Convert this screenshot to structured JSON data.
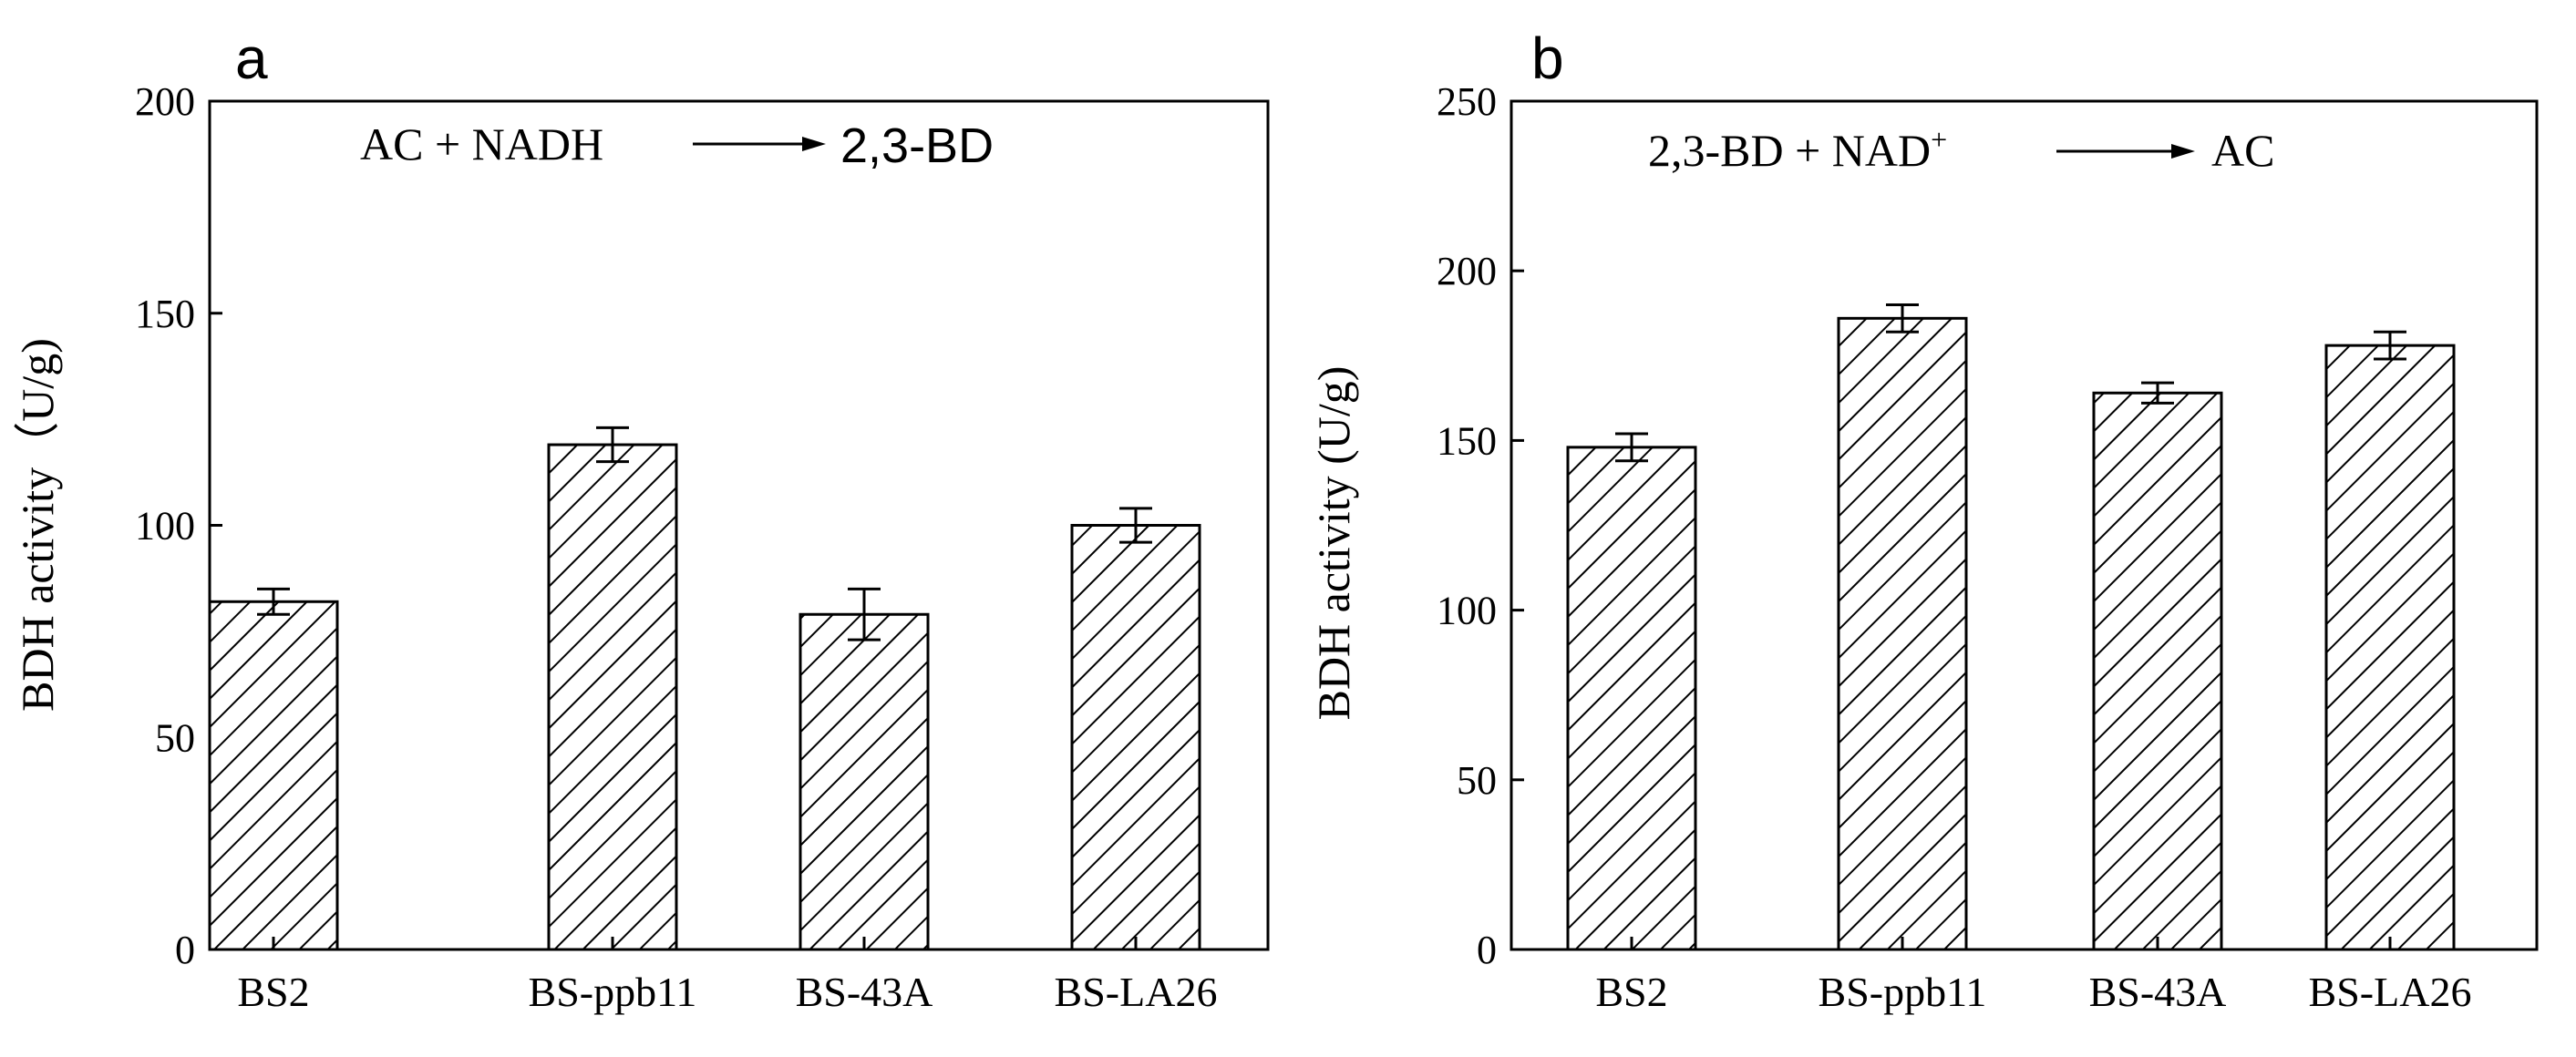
{
  "chart_data": [
    {
      "panel": "a",
      "type": "bar",
      "categories": [
        "BS2",
        "BS-ppb11",
        "BS-43A",
        "BS-LA26"
      ],
      "values": [
        82,
        119,
        79,
        100
      ],
      "errors": [
        3,
        4,
        6,
        4
      ],
      "ylabel": "BDH activity（U/g)",
      "xlabel": "",
      "ylim": [
        0,
        200
      ],
      "yticks": [
        0,
        50,
        100,
        150,
        200
      ],
      "pattern": "diagonal-hatch",
      "reaction": {
        "left": "AC + NADH",
        "superscript": "",
        "right": "2,3-BD"
      }
    },
    {
      "panel": "b",
      "type": "bar",
      "categories": [
        "BS2",
        "BS-ppb11",
        "BS-43A",
        "BS-LA26"
      ],
      "values": [
        148,
        186,
        164,
        178
      ],
      "errors": [
        4,
        4,
        3,
        4
      ],
      "ylabel": "BDH activity (U/g)",
      "xlabel": "",
      "ylim": [
        0,
        250
      ],
      "yticks": [
        0,
        50,
        100,
        150,
        200,
        250
      ],
      "pattern": "diagonal-hatch",
      "reaction": {
        "left": "2,3-BD + NAD",
        "superscript": "+",
        "right": "AC"
      }
    }
  ]
}
